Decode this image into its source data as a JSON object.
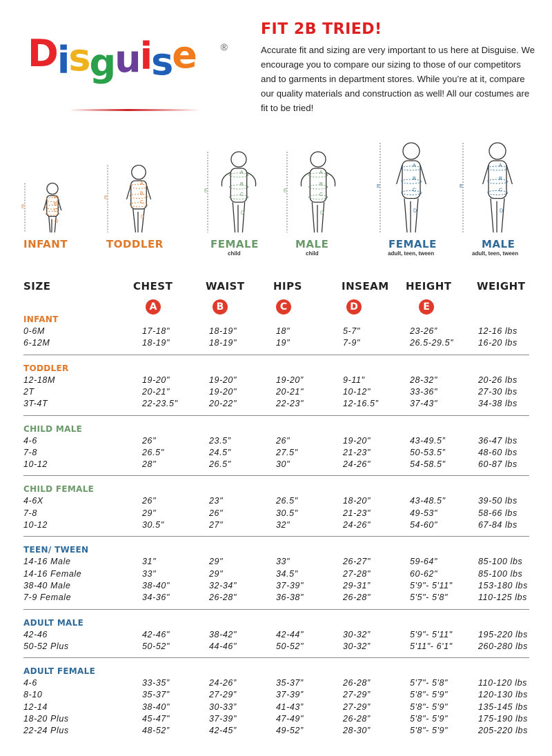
{
  "logo": {
    "letters": [
      "D",
      "i",
      "s",
      "g",
      "u",
      "i",
      "s",
      "e"
    ],
    "colors": [
      "#e8262a",
      "#1f5fb8",
      "#f0b21c",
      "#2aa04a",
      "#6a3f9a",
      "#e8262a",
      "#1f5fb8",
      "#f07c1e"
    ],
    "registered": "®"
  },
  "intro": {
    "title": "FIT 2B TRIED!",
    "text": "Accurate fit and sizing are very important to us here at Disguise. We encourage you to compare our sizing to those of our competitors and to garments in department stores. While you’re at it, compare our quality materials and construction as well! All our costumes are fit to be tried!"
  },
  "figures": [
    {
      "label": "INFANT",
      "sub": "",
      "color": "#e0782a"
    },
    {
      "label": "TODDLER",
      "sub": "",
      "color": "#e0782a"
    },
    {
      "label": "FEMALE",
      "sub": "child",
      "color": "#6a9a6a"
    },
    {
      "label": "MALE",
      "sub": "child",
      "color": "#6a9a6a"
    },
    {
      "label": "FEMALE",
      "sub": "adult, teen, tween",
      "color": "#2e6a9a"
    },
    {
      "label": "MALE",
      "sub": "adult, teen, tween",
      "color": "#2e6a9a"
    }
  ],
  "measure_letters": [
    "A",
    "B",
    "C",
    "D",
    "E"
  ],
  "table": {
    "headers": [
      "SIZE",
      "CHEST",
      "WAIST",
      "HIPS",
      "INSEAM",
      "HEIGHT",
      "WEIGHT"
    ],
    "sections": [
      {
        "title": "INFANT",
        "color": "#e0782a",
        "rows": [
          [
            "0-6M",
            "17-18\"",
            "18-19\"",
            "18\"",
            "5-7\"",
            "23-26”",
            "12-16 lbs"
          ],
          [
            "6-12M",
            "18-19\"",
            "18-19\"",
            "19\"",
            "7-9\"",
            "26.5-29.5”",
            "16-20 lbs"
          ]
        ]
      },
      {
        "title": "TODDLER",
        "color": "#e0782a",
        "rows": [
          [
            "12-18M",
            "19-20\"",
            "19-20\"",
            "19-20”",
            "9-11\"",
            "28-32\"",
            "20-26 lbs"
          ],
          [
            "2T",
            "20-21\"",
            "19-20\"",
            "20-21\"",
            "10-12\"",
            "33-36\"",
            "27-30 lbs"
          ],
          [
            "3T-4T",
            "22-23.5\"",
            "20-22\"",
            "22-23\"",
            "12-16.5”",
            "37-43\"",
            "34-38 lbs"
          ]
        ]
      },
      {
        "title": "CHILD MALE",
        "color": "#6a9a6a",
        "rows": [
          [
            "4-6",
            "26\"",
            "23.5”",
            "26\"",
            "19-20\"",
            "43-49.5”",
            "36-47 lbs"
          ],
          [
            "7-8",
            "26.5\"",
            "24.5\"",
            "27.5\"",
            "21-23\"",
            "50-53.5”",
            "48-60 lbs"
          ],
          [
            "10-12",
            "28\"",
            "26.5\"",
            "30\"",
            "24-26\"",
            "54-58.5\"",
            "60-87 lbs"
          ]
        ]
      },
      {
        "title": "CHILD FEMALE",
        "color": "#6a9a6a",
        "rows": [
          [
            "4-6X",
            "26\"",
            "23\"",
            "26.5\"",
            "18-20\"",
            "43-48.5\"",
            "39-50 lbs"
          ],
          [
            "7-8",
            "29\"",
            "26\"",
            "30.5\"",
            "21-23\"",
            "49-53\"",
            "58-66 lbs"
          ],
          [
            "10-12",
            "30.5\"",
            "27\"",
            "32\"",
            "24-26\"",
            "54-60\"",
            "67-84 lbs"
          ]
        ]
      },
      {
        "title": "TEEN/ TWEEN",
        "color": "#2e6a9a",
        "rows": [
          [
            "14-16 Male",
            "31\"",
            "29\"",
            "33\"",
            "26-27\"",
            "59-64\"",
            "85-100 lbs"
          ],
          [
            "14-16 Female",
            "33\"",
            "29\"",
            "34.5\"",
            "27-28\"",
            "60-62\"",
            "85-100 lbs"
          ],
          [
            "38-40 Male",
            "38-40\"",
            "32-34\"",
            "37-39\"",
            "29-31”",
            "5'9\"- 5'11\"",
            "153-180 lbs"
          ],
          [
            "7-9 Female",
            "34-36\"",
            "26-28\"",
            "36-38\"",
            "26-28\"",
            "5'5\"- 5'8\"",
            "110-125 lbs"
          ]
        ]
      },
      {
        "title": "ADULT MALE",
        "color": "#2e6a9a",
        "rows": [
          [
            "42-46",
            "42-46\"",
            "38-42\"",
            "42-44\"",
            "30-32”",
            "5'9\"- 5'11\"",
            "195-220 lbs"
          ],
          [
            "50-52 Plus",
            "50-52\"",
            "44-46\"",
            "50-52\"",
            "30-32”",
            "5'11\"- 6'1\"",
            "260-280 lbs"
          ]
        ]
      },
      {
        "title": "ADULT FEMALE",
        "color": "#2e6a9a",
        "rows": [
          [
            "4-6",
            "33-35”",
            "24-26”",
            "35-37”",
            "26-28”",
            "5'7\"- 5'8\"",
            "110-120 lbs"
          ],
          [
            "8-10",
            "35-37”",
            "27-29”",
            "37-39”",
            "27-29”",
            "5'8\"- 5'9\"",
            "120-130 lbs"
          ],
          [
            "12-14",
            "38-40\"",
            "30-33”",
            "41-43”",
            "27-29”",
            "5'8\"- 5'9\"",
            "135-145 lbs"
          ],
          [
            "18-20 Plus",
            "45-47\"",
            "37-39\"",
            "47-49\"",
            "26-28”",
            "5'8\"- 5'9\"",
            "175-190 lbs"
          ],
          [
            "22-24 Plus",
            "48-52”",
            "42-45”",
            "49-52”",
            "28-30”",
            "5'8\"- 5'9\"",
            "205-220 lbs"
          ]
        ]
      }
    ]
  }
}
